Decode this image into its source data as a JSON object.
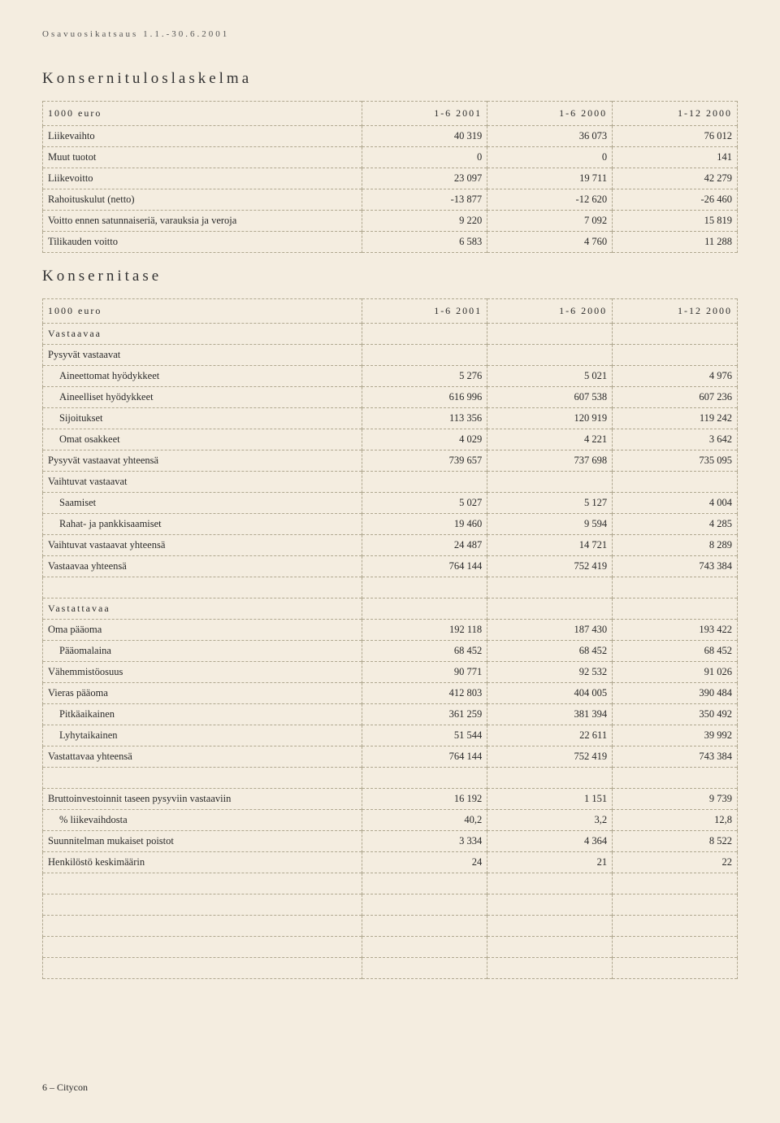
{
  "header": {
    "period": "Osavuosikatsaus 1.1.-30.6.2001"
  },
  "income": {
    "title": "Konsernituloslaskelma",
    "cols": [
      "1000 euro",
      "1-6 2001",
      "1-6 2000",
      "1-12 2000"
    ],
    "rows": [
      {
        "label": "Liikevaihto",
        "v": [
          "40 319",
          "36 073",
          "76 012"
        ]
      },
      {
        "label": "Muut tuotot",
        "v": [
          "0",
          "0",
          "141"
        ]
      },
      {
        "label": "Liikevoitto",
        "v": [
          "23 097",
          "19 711",
          "42 279"
        ]
      },
      {
        "label": "Rahoituskulut (netto)",
        "v": [
          "-13 877",
          "-12 620",
          "-26 460"
        ]
      },
      {
        "label": "Voitto ennen satunnaiseriä, varauksia ja veroja",
        "v": [
          "9 220",
          "7 092",
          "15 819"
        ]
      },
      {
        "label": "Tilikauden voitto",
        "v": [
          "6 583",
          "4 760",
          "11 288"
        ]
      }
    ]
  },
  "balance": {
    "title": "Konsernitase",
    "cols": [
      "1000 euro",
      "1-6 2001",
      "1-6 2000",
      "1-12 2000"
    ],
    "assets_header": "Vastaavaa",
    "fixed_header": "Pysyvät vastaavat",
    "fixed": [
      {
        "label": "Aineettomat hyödykkeet",
        "v": [
          "5 276",
          "5 021",
          "4 976"
        ]
      },
      {
        "label": "Aineelliset hyödykkeet",
        "v": [
          "616 996",
          "607 538",
          "607 236"
        ]
      },
      {
        "label": "Sijoitukset",
        "v": [
          "113 356",
          "120 919",
          "119 242"
        ]
      },
      {
        "label": "Omat osakkeet",
        "v": [
          "4 029",
          "4 221",
          "3 642"
        ]
      }
    ],
    "fixed_total": {
      "label": "Pysyvät vastaavat yhteensä",
      "v": [
        "739 657",
        "737 698",
        "735 095"
      ]
    },
    "current_header": "Vaihtuvat vastaavat",
    "current": [
      {
        "label": "Saamiset",
        "v": [
          "5 027",
          "5 127",
          "4 004"
        ]
      },
      {
        "label": "Rahat- ja pankkisaamiset",
        "v": [
          "19 460",
          "9 594",
          "4 285"
        ]
      }
    ],
    "current_total": {
      "label": "Vaihtuvat vastaavat yhteensä",
      "v": [
        "24 487",
        "14 721",
        "8 289"
      ]
    },
    "assets_total": {
      "label": "Vastaavaa yhteensä",
      "v": [
        "764 144",
        "752 419",
        "743 384"
      ]
    },
    "liab_header": "Vastattavaa",
    "equity": {
      "label": "Oma pääoma",
      "v": [
        "192 118",
        "187 430",
        "193 422"
      ]
    },
    "equity_sub": [
      {
        "label": "Pääomalaina",
        "v": [
          "68 452",
          "68 452",
          "68 452"
        ]
      }
    ],
    "minority": {
      "label": "Vähemmistöosuus",
      "v": [
        "90 771",
        "92 532",
        "91 026"
      ]
    },
    "debt": {
      "label": "Vieras pääoma",
      "v": [
        "412 803",
        "404 005",
        "390 484"
      ]
    },
    "debt_sub": [
      {
        "label": "Pitkäaikainen",
        "v": [
          "361 259",
          "381 394",
          "350 492"
        ]
      },
      {
        "label": "Lyhytaikainen",
        "v": [
          "51 544",
          "22 611",
          "39 992"
        ]
      }
    ],
    "liab_total": {
      "label": "Vastattavaa yhteensä",
      "v": [
        "764 144",
        "752 419",
        "743 384"
      ]
    },
    "extra": [
      {
        "label": "Bruttoinvestoinnit taseen pysyviin vastaaviin",
        "v": [
          "16 192",
          "1 151",
          "9 739"
        ]
      },
      {
        "label": "% liikevaihdosta",
        "v": [
          "40,2",
          "3,2",
          "12,8"
        ],
        "indent": true
      },
      {
        "label": "Suunnitelman mukaiset poistot",
        "v": [
          "3 334",
          "4 364",
          "8 522"
        ]
      },
      {
        "label": "Henkilöstö keskimäärin",
        "v": [
          "24",
          "21",
          "22"
        ]
      }
    ]
  },
  "footer": "6 – Citycon",
  "style": {
    "background": "#f4ede0",
    "dash_color": "#b0a890",
    "text_color": "#2a2a2a"
  }
}
